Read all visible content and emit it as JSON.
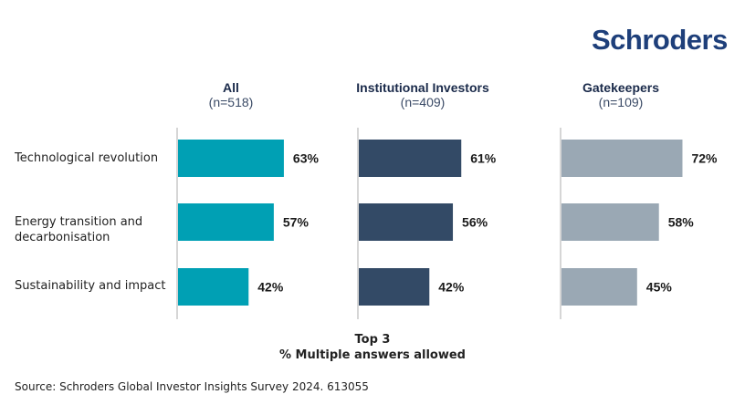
{
  "logo": "Schroders",
  "chart_data": {
    "type": "bar",
    "orientation": "horizontal",
    "categories": [
      "Technological revolution",
      "Energy transition and decarbonisation",
      "Sustainability and impact"
    ],
    "category_lines": [
      [
        "Technological revolution"
      ],
      [
        "Energy transition and",
        "decarbonisation"
      ],
      [
        "Sustainability and impact"
      ]
    ],
    "series": [
      {
        "name": "All",
        "n_label": "(n=518)",
        "color": "#00a0b4",
        "values": [
          63,
          57,
          42
        ],
        "labels": [
          "63%",
          "57%",
          "42%"
        ]
      },
      {
        "name": "Institutional Investors",
        "n_label": "(n=409)",
        "color": "#334a66",
        "values": [
          61,
          56,
          42
        ],
        "labels": [
          "61%",
          "56%",
          "42%"
        ]
      },
      {
        "name": "Gatekeepers",
        "n_label": "(n=109)",
        "color": "#9aa8b4",
        "values": [
          72,
          58,
          45
        ],
        "labels": [
          "72%",
          "58%",
          "45%"
        ]
      }
    ],
    "xlim": [
      0,
      100
    ],
    "grid": false,
    "note_line1": "Top 3",
    "note_line2": "% Multiple answers allowed"
  },
  "source": "Source: Schroders Global Investor Insights Survey 2024. 613055"
}
